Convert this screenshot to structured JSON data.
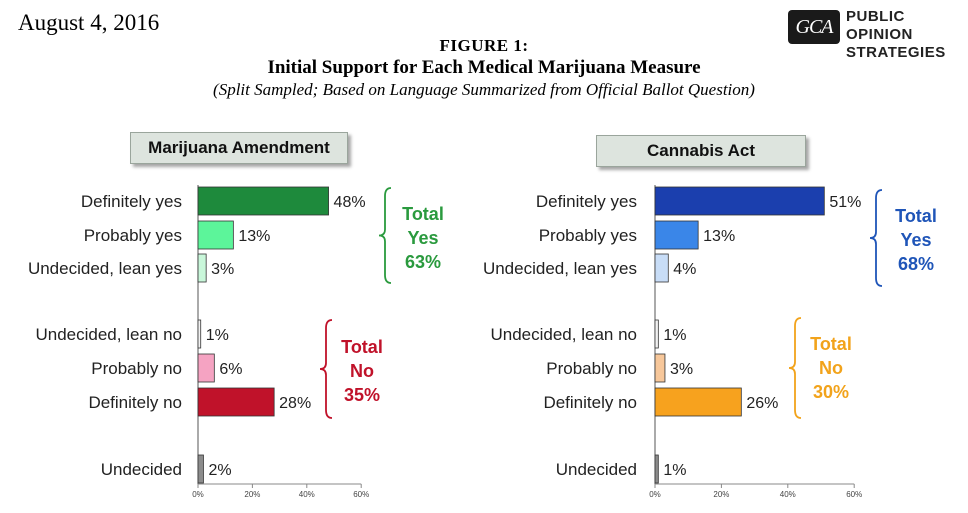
{
  "header": {
    "date": "August 4, 2016",
    "logo_badge": "GCA",
    "logo_line1": "PUBLIC OPINION",
    "logo_line2": "STRATEGIES",
    "figure_label": "FIGURE 1:",
    "title": "Initial Support for Each Medical Marijuana Measure",
    "subtitle": "(Split Sampled; Based on Language Summarized from Official Ballot Question)"
  },
  "chart_data": [
    {
      "type": "bar",
      "orientation": "horizontal",
      "title": "Marijuana Amendment",
      "categories": [
        "Definitely yes",
        "Probably yes",
        "Undecided, lean yes",
        "Undecided, lean no",
        "Probably no",
        "Definitely no",
        "Undecided"
      ],
      "values": [
        48,
        13,
        3,
        1,
        6,
        28,
        2
      ],
      "value_labels": [
        "48%",
        "13%",
        "3%",
        "1%",
        "6%",
        "28%",
        "2%"
      ],
      "colors": [
        "#1e8a3c",
        "#5cf59a",
        "#c9f7da",
        "#f2f2f2",
        "#f5a3c2",
        "#c0122a",
        "#8c8c8c"
      ],
      "xlim": [
        0,
        60
      ],
      "xticks": [
        "0%",
        "20%",
        "40%",
        "60%"
      ],
      "totals": [
        {
          "lines": [
            "Total",
            "Yes",
            "63%"
          ],
          "color": "#2a9a3e"
        },
        {
          "lines": [
            "Total",
            "No",
            "35%"
          ],
          "color": "#c0122a"
        }
      ]
    },
    {
      "type": "bar",
      "orientation": "horizontal",
      "title": "Cannabis Act",
      "categories": [
        "Definitely yes",
        "Probably yes",
        "Undecided, lean yes",
        "Undecided, lean no",
        "Probably no",
        "Definitely no",
        "Undecided"
      ],
      "values": [
        51,
        13,
        4,
        1,
        3,
        26,
        1
      ],
      "value_labels": [
        "51%",
        "13%",
        "4%",
        "1%",
        "3%",
        "26%",
        "1%"
      ],
      "colors": [
        "#1b3fae",
        "#3a86e8",
        "#c8ddf7",
        "#f2f2f2",
        "#f7c79a",
        "#f7a21e",
        "#8c8c8c"
      ],
      "xlim": [
        0,
        60
      ],
      "xticks": [
        "0%",
        "20%",
        "40%",
        "60%"
      ],
      "totals": [
        {
          "lines": [
            "Total",
            "Yes",
            "68%"
          ],
          "color": "#1f55b8"
        },
        {
          "lines": [
            "Total",
            "No",
            "30%"
          ],
          "color": "#f2a31b"
        }
      ]
    }
  ]
}
